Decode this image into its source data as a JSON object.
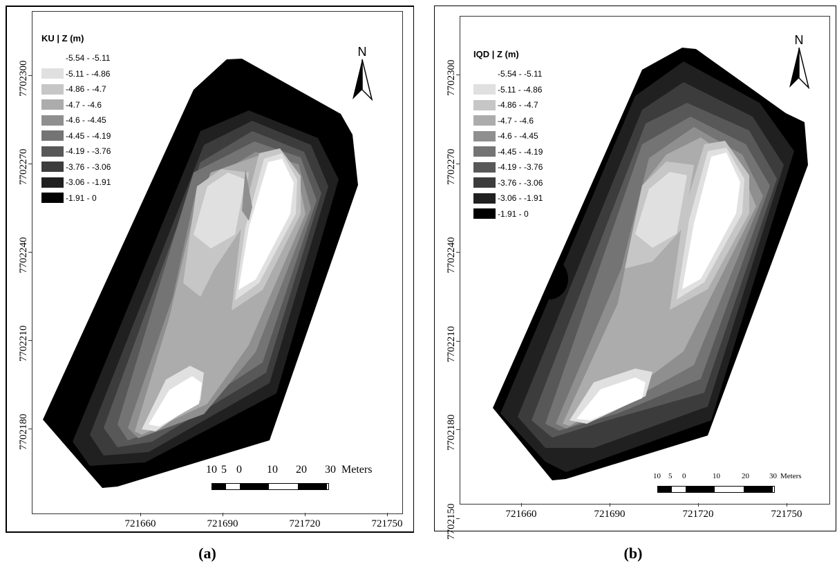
{
  "panels": [
    {
      "id": "a",
      "title": "KU | Z (m)",
      "caption": "(a)",
      "y_ticks": [
        "7702300",
        "7702270",
        "7702240",
        "7702210",
        "7702180"
      ],
      "x_ticks": [
        "721660",
        "721690",
        "721720",
        "721750"
      ],
      "scale_labels": [
        "10",
        "5",
        "0",
        "10",
        "20",
        "30"
      ],
      "scale_unit": "Meters"
    },
    {
      "id": "b",
      "title": "IQD | Z (m)",
      "caption": "(b)",
      "y_ticks": [
        "7702300",
        "7702270",
        "7702240",
        "7702210",
        "7702180",
        "7702150"
      ],
      "x_ticks": [
        "721660",
        "721690",
        "721720",
        "721750"
      ],
      "scale_labels": [
        "10",
        "5",
        "0",
        "10",
        "20",
        "30"
      ],
      "scale_unit": "Meters"
    }
  ],
  "north_label": "N",
  "legend": [
    {
      "range": "-5.54 - -5.11",
      "color": "#ffffff"
    },
    {
      "range": "-5.11 - -4.86",
      "color": "#e0e0e0"
    },
    {
      "range": "-4.86 - -4.7",
      "color": "#c6c6c6"
    },
    {
      "range": "-4.7 - -4.6",
      "color": "#acacac"
    },
    {
      "range": "-4.6 - -4.45",
      "color": "#8f8f8f"
    },
    {
      "range": "-4.45 - -4.19",
      "color": "#747474"
    },
    {
      "range": "-4.19 - -3.76",
      "color": "#585858"
    },
    {
      "range": "-3.76 - -3.06",
      "color": "#3c3c3c"
    },
    {
      "range": "-3.06 - -1.91",
      "color": "#202020"
    },
    {
      "range": "-1.91 - 0",
      "color": "#000000"
    }
  ]
}
